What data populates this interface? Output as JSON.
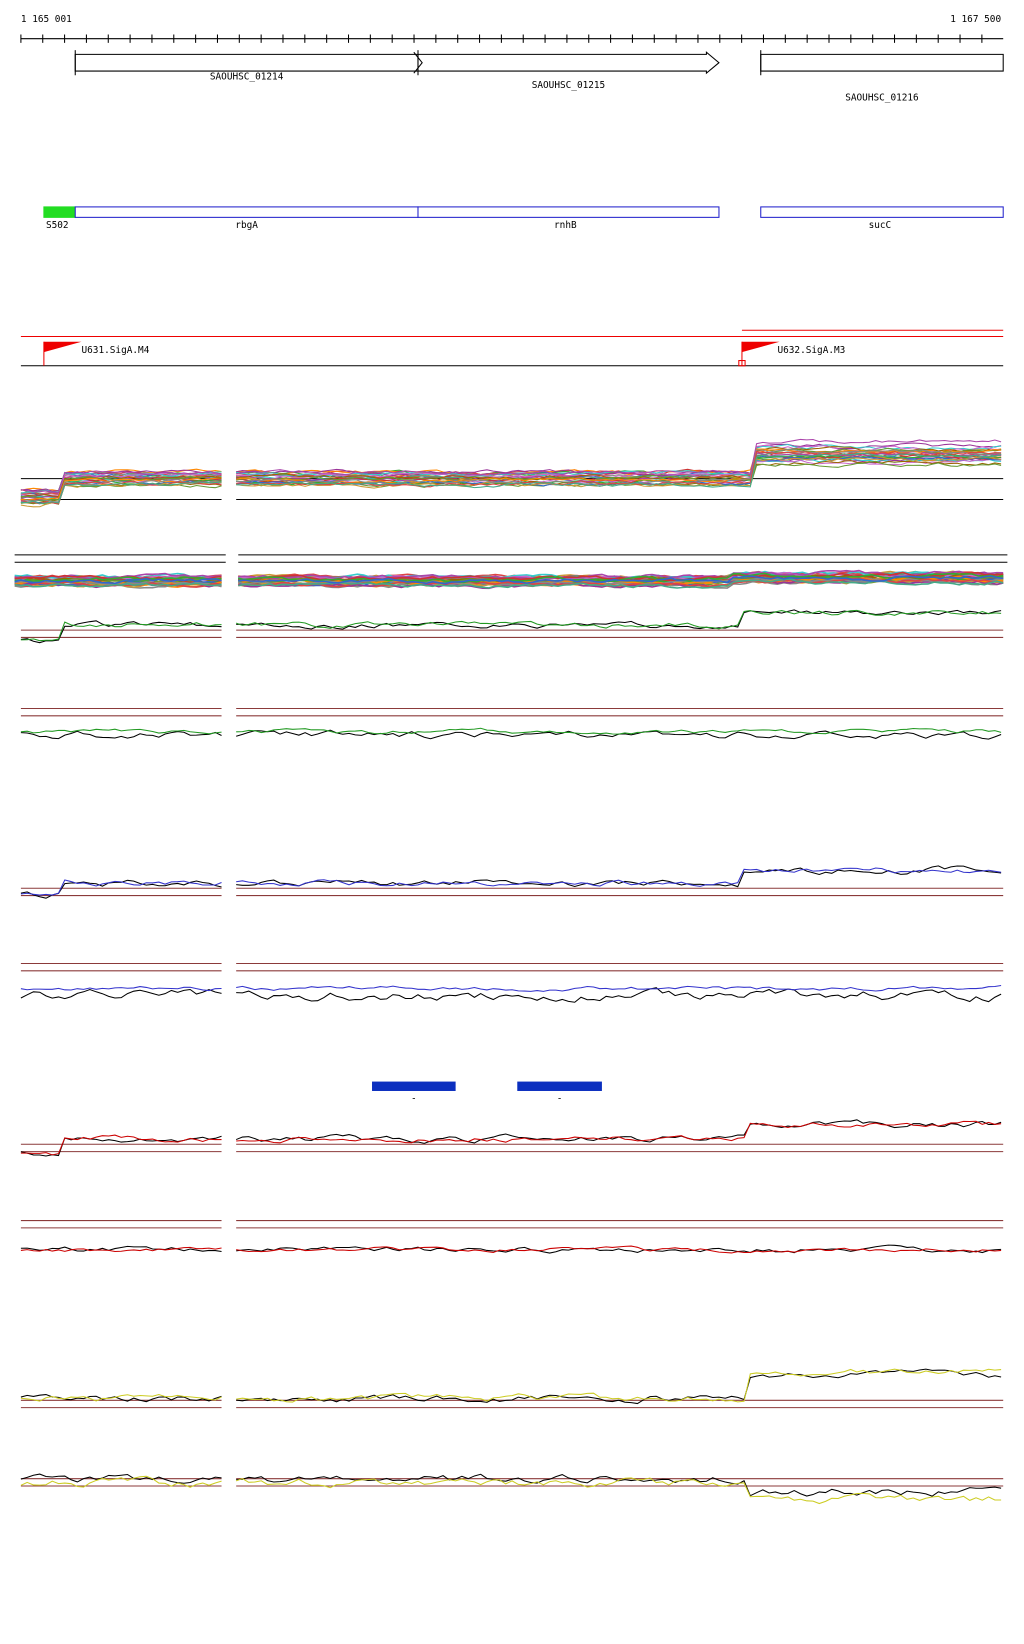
{
  "ruler": {
    "start": "1 165 001",
    "end": "1 167 500"
  },
  "genes": [
    {
      "label": "SAOUHSC_01214"
    },
    {
      "label": "SAOUHSC_01215"
    },
    {
      "label": "SAOUHSC_01216"
    }
  ],
  "features": [
    {
      "label": "S502"
    },
    {
      "label": "rbgA"
    },
    {
      "label": "rnhB"
    },
    {
      "label": "sucC"
    }
  ],
  "promoters": [
    {
      "label": "U631.SigA.M4"
    },
    {
      "label": "U632.SigA.M3"
    }
  ],
  "regions": [
    {
      "label": "-"
    },
    {
      "label": "-"
    }
  ]
}
